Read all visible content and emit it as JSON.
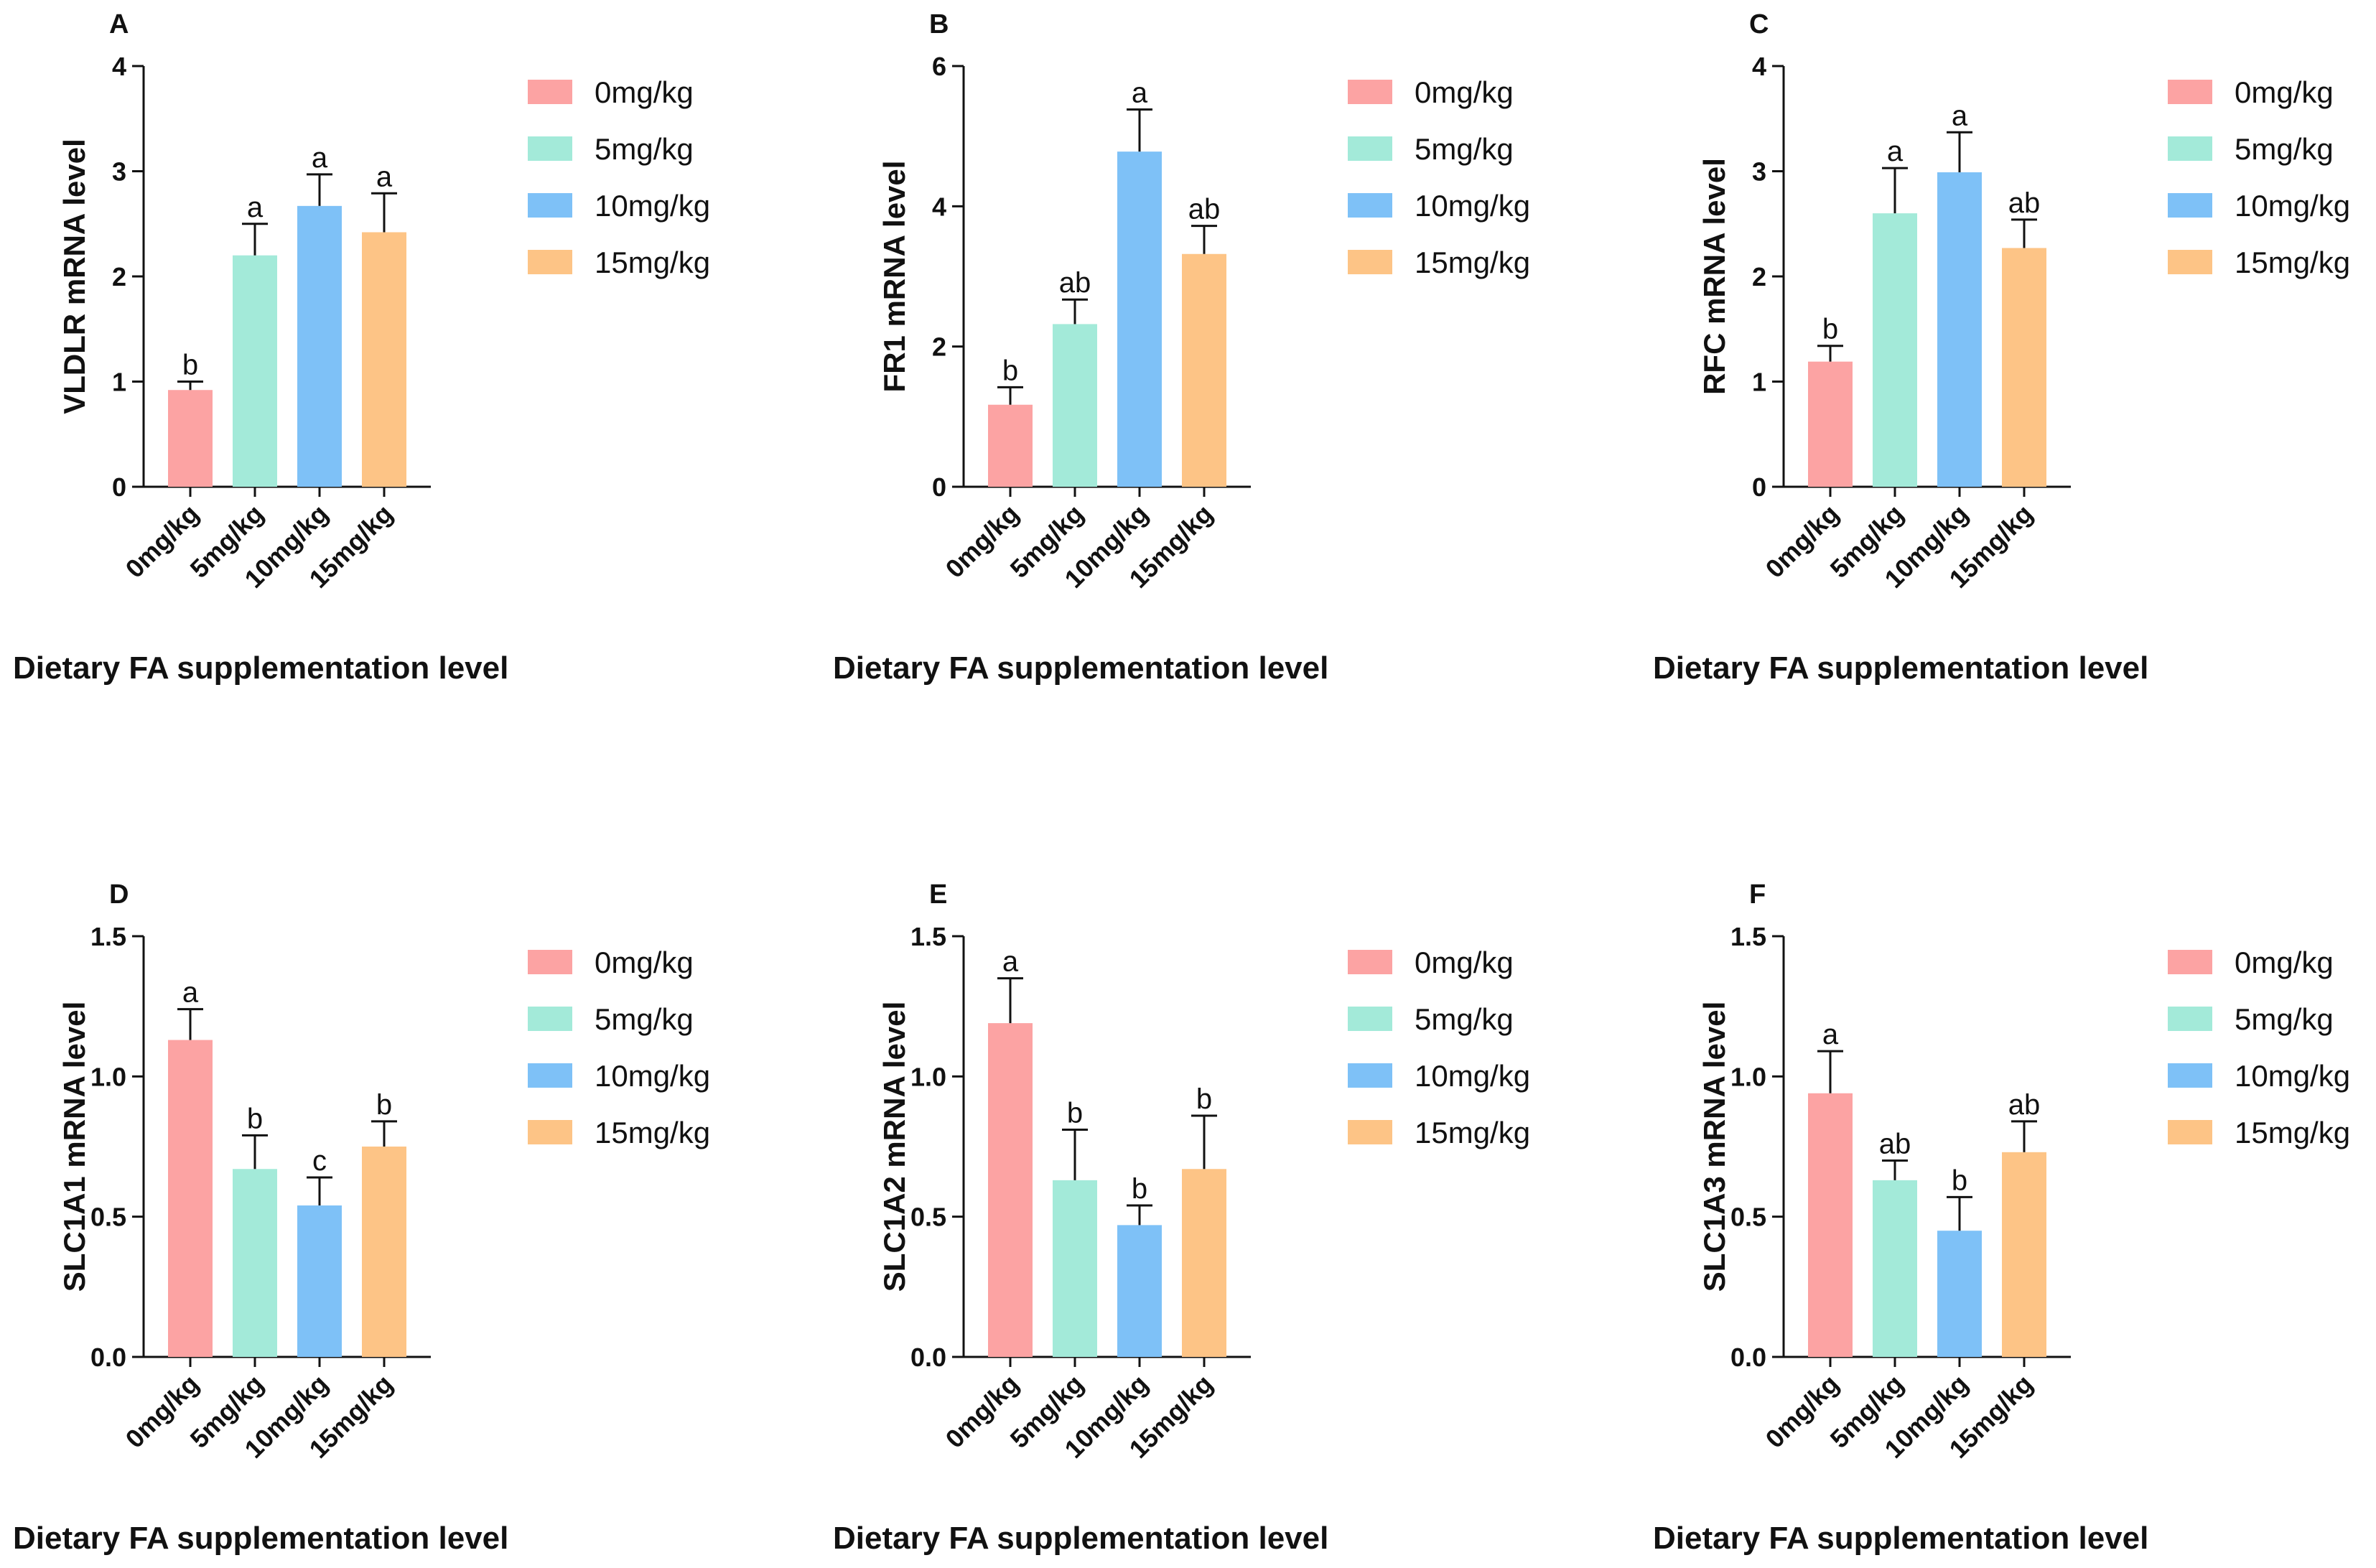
{
  "figure": {
    "palette": {
      "0mg/kg": "#fca3a3",
      "5mg/kg": "#a3ead9",
      "10mg/kg": "#7ec1f7",
      "15mg/kg": "#fdc486"
    },
    "xlabel": "Dietary FA supplementation level"
  },
  "chart_data": [
    {
      "type": "bar",
      "panel": "A",
      "categories": [
        "0mg/kg",
        "5mg/kg",
        "10mg/kg",
        "15mg/kg"
      ],
      "values": [
        0.92,
        2.2,
        2.67,
        2.42
      ],
      "errors": [
        0.08,
        0.3,
        0.3,
        0.37
      ],
      "significance": [
        "b",
        "a",
        "a",
        "a"
      ],
      "ylabel": "VLDLR mRNA level",
      "xlabel": "Dietary FA supplementation level",
      "ylim": [
        0,
        4
      ],
      "yticks": [
        "0",
        "1",
        "2",
        "3",
        "4"
      ],
      "legend": [
        "0mg/kg",
        "5mg/kg",
        "10mg/kg",
        "15mg/kg"
      ],
      "legend_position": "right"
    },
    {
      "type": "bar",
      "panel": "B",
      "categories": [
        "0mg/kg",
        "5mg/kg",
        "10mg/kg",
        "15mg/kg"
      ],
      "values": [
        1.17,
        2.32,
        4.78,
        3.32
      ],
      "errors": [
        0.25,
        0.35,
        0.6,
        0.4
      ],
      "significance": [
        "b",
        "ab",
        "a",
        "ab"
      ],
      "ylabel": "FR1 mRNA level",
      "xlabel": "Dietary FA supplementation level",
      "ylim": [
        0,
        6
      ],
      "yticks": [
        "0",
        "2",
        "4",
        "6"
      ],
      "legend": [
        "0mg/kg",
        "5mg/kg",
        "10mg/kg",
        "15mg/kg"
      ],
      "legend_position": "right"
    },
    {
      "type": "bar",
      "panel": "C",
      "categories": [
        "0mg/kg",
        "5mg/kg",
        "10mg/kg",
        "15mg/kg"
      ],
      "values": [
        1.19,
        2.6,
        2.99,
        2.27
      ],
      "errors": [
        0.15,
        0.43,
        0.38,
        0.27
      ],
      "significance": [
        "b",
        "a",
        "a",
        "ab"
      ],
      "ylabel": "RFC mRNA level",
      "xlabel": "Dietary FA supplementation level",
      "ylim": [
        0,
        4
      ],
      "yticks": [
        "0",
        "1",
        "2",
        "3",
        "4"
      ],
      "legend": [
        "0mg/kg",
        "5mg/kg",
        "10mg/kg",
        "15mg/kg"
      ],
      "legend_position": "right"
    },
    {
      "type": "bar",
      "panel": "D",
      "categories": [
        "0mg/kg",
        "5mg/kg",
        "10mg/kg",
        "15mg/kg"
      ],
      "values": [
        1.13,
        0.67,
        0.54,
        0.75
      ],
      "errors": [
        0.11,
        0.12,
        0.1,
        0.09
      ],
      "significance": [
        "a",
        "b",
        "c",
        "b"
      ],
      "ylabel": "SLC1A1 mRNA level",
      "xlabel": "Dietary FA supplementation level",
      "ylim": [
        0,
        1.5
      ],
      "yticks": [
        "0.0",
        "0.5",
        "1.0",
        "1.5"
      ],
      "legend": [
        "0mg/kg",
        "5mg/kg",
        "10mg/kg",
        "15mg/kg"
      ],
      "legend_position": "right"
    },
    {
      "type": "bar",
      "panel": "E",
      "categories": [
        "0mg/kg",
        "5mg/kg",
        "10mg/kg",
        "15mg/kg"
      ],
      "values": [
        1.19,
        0.63,
        0.47,
        0.67
      ],
      "errors": [
        0.16,
        0.18,
        0.07,
        0.19
      ],
      "significance": [
        "a",
        "b",
        "b",
        "b"
      ],
      "ylabel": "SLC1A2 mRNA level",
      "xlabel": "Dietary FA supplementation level",
      "ylim": [
        0,
        1.5
      ],
      "yticks": [
        "0.0",
        "0.5",
        "1.0",
        "1.5"
      ],
      "legend": [
        "0mg/kg",
        "5mg/kg",
        "10mg/kg",
        "15mg/kg"
      ],
      "legend_position": "right"
    },
    {
      "type": "bar",
      "panel": "F",
      "categories": [
        "0mg/kg",
        "5mg/kg",
        "10mg/kg",
        "15mg/kg"
      ],
      "values": [
        0.94,
        0.63,
        0.45,
        0.73
      ],
      "errors": [
        0.15,
        0.07,
        0.12,
        0.11
      ],
      "significance": [
        "a",
        "ab",
        "b",
        "ab"
      ],
      "ylabel": "SLC1A3 mRNA level",
      "xlabel": "Dietary FA supplementation level",
      "ylim": [
        0,
        1.5
      ],
      "yticks": [
        "0.0",
        "0.5",
        "1.0",
        "1.5"
      ],
      "legend": [
        "0mg/kg",
        "5mg/kg",
        "10mg/kg",
        "15mg/kg"
      ],
      "legend_position": "right"
    }
  ]
}
